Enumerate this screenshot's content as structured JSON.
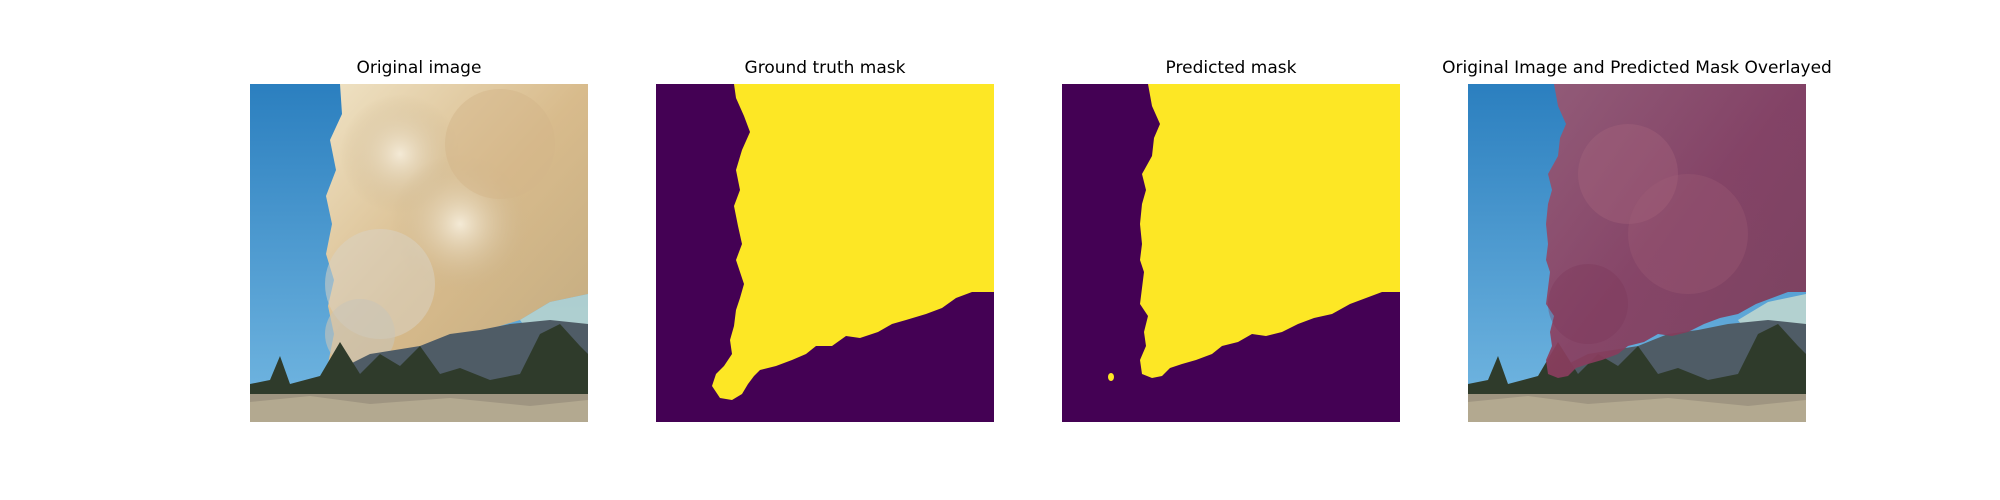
{
  "figure": {
    "panels": [
      {
        "id": "original",
        "title": "Original image"
      },
      {
        "id": "ground_truth",
        "title": "Ground truth mask"
      },
      {
        "id": "predicted",
        "title": "Predicted mask"
      },
      {
        "id": "overlay",
        "title": "Original Image and Predicted Mask Overlayed"
      }
    ]
  },
  "colors": {
    "background": "#ffffff",
    "sky_top": "#2f86c4",
    "sky_bottom": "#6fb4e0",
    "smoke_light": "#e9d2a6",
    "smoke_dark": "#b9a483",
    "smoke_gray": "#c8c3b6",
    "mountains": "#556270",
    "trees": "#2d3b2a",
    "ground": "#a39a86",
    "mask_background": "#440154",
    "mask_foreground": "#fde725",
    "overlay_tint": "#8e3a5e"
  }
}
